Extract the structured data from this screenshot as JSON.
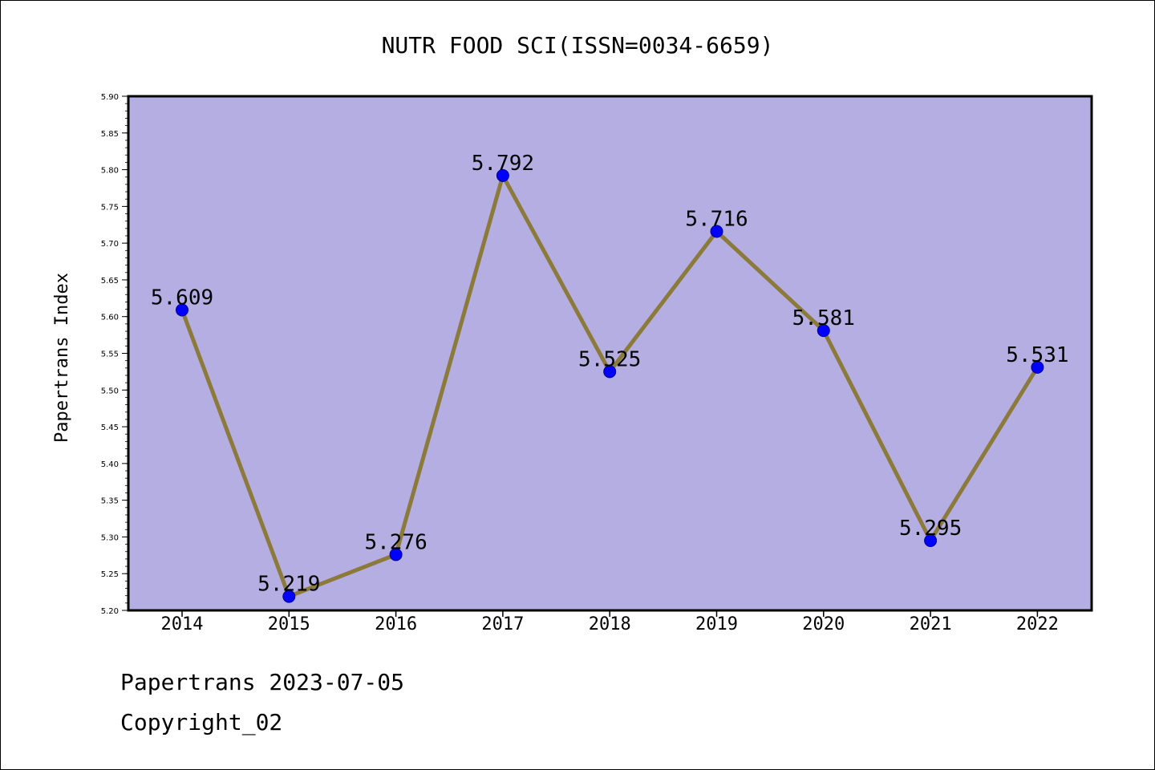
{
  "chart_data": {
    "type": "line",
    "title": "NUTR FOOD SCI(ISSN=0034-6659)",
    "xlabel": "",
    "ylabel": "Papertrans Index",
    "categories": [
      "2014",
      "2015",
      "2016",
      "2017",
      "2018",
      "2019",
      "2020",
      "2021",
      "2022"
    ],
    "series": [
      {
        "values": [
          5.609,
          5.219,
          5.276,
          5.792,
          5.525,
          5.716,
          5.581,
          5.295,
          5.531
        ]
      }
    ],
    "data_labels": [
      "5.609",
      "5.219",
      "5.276",
      "5.792",
      "5.525",
      "5.716",
      "5.581",
      "5.295",
      "5.531"
    ],
    "ylim": [
      5.2,
      5.9
    ],
    "yticks": [
      "5.20",
      "5.25",
      "5.30",
      "5.35",
      "5.40",
      "5.45",
      "5.50",
      "5.55",
      "5.60",
      "5.65",
      "5.70",
      "5.75",
      "5.80",
      "5.85",
      "5.90"
    ],
    "grid": false,
    "legend": "none",
    "colors": {
      "plot_background": "#b5aee2",
      "line": "#8b7a3a",
      "marker": "#0000ff"
    }
  },
  "footer": {
    "line1": "Papertrans 2023-07-05",
    "line2": "Copyright_02"
  }
}
